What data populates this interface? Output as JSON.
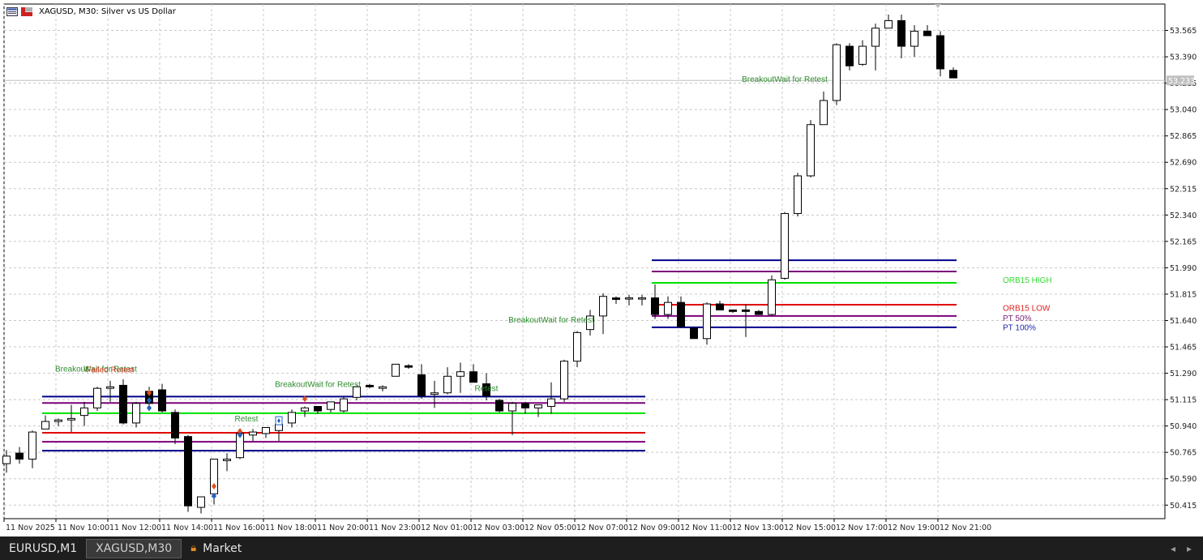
{
  "window": {
    "title": "XAGUSD, M30:  Silver vs US Dollar"
  },
  "chart_data": {
    "type": "candlestick",
    "symbol": "XAGUSD",
    "timeframe": "M30",
    "title": "XAGUSD, M30:  Silver vs US Dollar",
    "ylim": [
      50.325,
      53.74
    ],
    "grid": true,
    "current_price": "53.233",
    "y_ticks": [
      "53.565",
      "53.390",
      "53.215",
      "53.040",
      "52.865",
      "52.690",
      "52.515",
      "52.340",
      "52.165",
      "51.990",
      "51.815",
      "51.640",
      "51.465",
      "51.290",
      "51.115",
      "50.940",
      "50.765",
      "50.590",
      "50.415"
    ],
    "x_ticks": [
      "11 Nov 2025",
      "11 Nov 10:00",
      "11 Nov 12:00",
      "11 Nov 14:00",
      "11 Nov 16:00",
      "11 Nov 18:00",
      "11 Nov 20:00",
      "11 Nov 23:00",
      "12 Nov 01:00",
      "12 Nov 03:00",
      "12 Nov 05:00",
      "12 Nov 07:00",
      "12 Nov 09:00",
      "12 Nov 11:00",
      "12 Nov 13:00",
      "12 Nov 15:00",
      "12 Nov 17:00",
      "12 Nov 19:00",
      "12 Nov 21:00"
    ],
    "candles": [
      {
        "o": 50.69,
        "h": 50.78,
        "l": 50.63,
        "c": 50.74
      },
      {
        "o": 50.76,
        "h": 50.8,
        "l": 50.69,
        "c": 50.72
      },
      {
        "o": 50.72,
        "h": 50.91,
        "l": 50.66,
        "c": 50.9
      },
      {
        "o": 50.92,
        "h": 51.01,
        "l": 50.92,
        "c": 50.97
      },
      {
        "o": 50.97,
        "h": 50.99,
        "l": 50.94,
        "c": 50.98
      },
      {
        "o": 50.98,
        "h": 51.08,
        "l": 50.9,
        "c": 50.99
      },
      {
        "o": 51.01,
        "h": 51.1,
        "l": 50.94,
        "c": 51.06
      },
      {
        "o": 51.06,
        "h": 51.2,
        "l": 51.04,
        "c": 51.19
      },
      {
        "o": 51.19,
        "h": 51.24,
        "l": 51.1,
        "c": 51.2
      },
      {
        "o": 51.21,
        "h": 51.25,
        "l": 50.95,
        "c": 50.96
      },
      {
        "o": 50.96,
        "h": 51.1,
        "l": 50.93,
        "c": 51.09
      },
      {
        "o": 51.17,
        "h": 51.2,
        "l": 51.05,
        "c": 51.09
      },
      {
        "o": 51.18,
        "h": 51.22,
        "l": 51.03,
        "c": 51.04
      },
      {
        "o": 51.03,
        "h": 51.05,
        "l": 50.82,
        "c": 50.86
      },
      {
        "o": 50.87,
        "h": 50.88,
        "l": 50.37,
        "c": 50.41
      },
      {
        "o": 50.4,
        "h": 50.47,
        "l": 50.36,
        "c": 50.47
      },
      {
        "o": 50.49,
        "h": 50.72,
        "l": 50.42,
        "c": 50.72
      },
      {
        "o": 50.71,
        "h": 50.76,
        "l": 50.64,
        "c": 50.72
      },
      {
        "o": 50.73,
        "h": 50.87,
        "l": 50.72,
        "c": 50.89
      },
      {
        "o": 50.88,
        "h": 50.92,
        "l": 50.84,
        "c": 50.9
      },
      {
        "o": 50.89,
        "h": 50.91,
        "l": 50.86,
        "c": 50.93
      },
      {
        "o": 50.91,
        "h": 50.96,
        "l": 50.84,
        "c": 50.95
      },
      {
        "o": 50.96,
        "h": 51.05,
        "l": 50.93,
        "c": 51.03
      },
      {
        "o": 51.04,
        "h": 51.07,
        "l": 51.0,
        "c": 51.06
      },
      {
        "o": 51.07,
        "h": 51.07,
        "l": 51.02,
        "c": 51.04
      },
      {
        "o": 51.05,
        "h": 51.1,
        "l": 51.03,
        "c": 51.1
      },
      {
        "o": 51.04,
        "h": 51.14,
        "l": 51.03,
        "c": 51.12
      },
      {
        "o": 51.13,
        "h": 51.21,
        "l": 51.11,
        "c": 51.2
      },
      {
        "o": 51.21,
        "h": 51.22,
        "l": 51.19,
        "c": 51.2
      },
      {
        "o": 51.19,
        "h": 51.21,
        "l": 51.17,
        "c": 51.2
      },
      {
        "o": 51.27,
        "h": 51.35,
        "l": 51.27,
        "c": 51.35
      },
      {
        "o": 51.34,
        "h": 51.35,
        "l": 51.32,
        "c": 51.33
      },
      {
        "o": 51.28,
        "h": 51.35,
        "l": 51.12,
        "c": 51.14
      },
      {
        "o": 51.15,
        "h": 51.24,
        "l": 51.06,
        "c": 51.16
      },
      {
        "o": 51.16,
        "h": 51.33,
        "l": 51.15,
        "c": 51.27
      },
      {
        "o": 51.27,
        "h": 51.36,
        "l": 51.16,
        "c": 51.3
      },
      {
        "o": 51.3,
        "h": 51.35,
        "l": 51.24,
        "c": 51.23
      },
      {
        "o": 51.22,
        "h": 51.29,
        "l": 51.11,
        "c": 51.14
      },
      {
        "o": 51.11,
        "h": 51.12,
        "l": 51.03,
        "c": 51.04
      },
      {
        "o": 51.04,
        "h": 51.1,
        "l": 50.88,
        "c": 51.09
      },
      {
        "o": 51.09,
        "h": 51.1,
        "l": 51.02,
        "c": 51.06
      },
      {
        "o": 51.06,
        "h": 51.08,
        "l": 51.0,
        "c": 51.08
      },
      {
        "o": 51.07,
        "h": 51.23,
        "l": 51.02,
        "c": 51.12
      },
      {
        "o": 51.12,
        "h": 51.38,
        "l": 51.1,
        "c": 51.37
      },
      {
        "o": 51.37,
        "h": 51.57,
        "l": 51.33,
        "c": 51.56
      },
      {
        "o": 51.58,
        "h": 51.71,
        "l": 51.54,
        "c": 51.67
      },
      {
        "o": 51.67,
        "h": 51.82,
        "l": 51.55,
        "c": 51.8
      },
      {
        "o": 51.79,
        "h": 51.8,
        "l": 51.75,
        "c": 51.78
      },
      {
        "o": 51.79,
        "h": 51.81,
        "l": 51.74,
        "c": 51.79
      },
      {
        "o": 51.79,
        "h": 51.81,
        "l": 51.74,
        "c": 51.79
      },
      {
        "o": 51.79,
        "h": 51.88,
        "l": 51.65,
        "c": 51.68
      },
      {
        "o": 51.68,
        "h": 51.8,
        "l": 51.65,
        "c": 51.76
      },
      {
        "o": 51.76,
        "h": 51.8,
        "l": 51.59,
        "c": 51.6
      },
      {
        "o": 51.59,
        "h": 51.59,
        "l": 51.52,
        "c": 51.52
      },
      {
        "o": 51.52,
        "h": 51.76,
        "l": 51.48,
        "c": 51.75
      },
      {
        "o": 51.75,
        "h": 51.77,
        "l": 51.72,
        "c": 51.71
      },
      {
        "o": 51.71,
        "h": 51.71,
        "l": 51.69,
        "c": 51.7
      },
      {
        "o": 51.71,
        "h": 51.75,
        "l": 51.53,
        "c": 51.7
      },
      {
        "o": 51.7,
        "h": 51.71,
        "l": 51.7,
        "c": 51.68
      },
      {
        "o": 51.68,
        "h": 51.94,
        "l": 51.67,
        "c": 51.91
      },
      {
        "o": 51.92,
        "h": 52.36,
        "l": 51.91,
        "c": 52.35
      },
      {
        "o": 52.35,
        "h": 52.62,
        "l": 52.33,
        "c": 52.6
      },
      {
        "o": 52.6,
        "h": 52.97,
        "l": 52.59,
        "c": 52.94
      },
      {
        "o": 52.94,
        "h": 53.16,
        "l": 52.95,
        "c": 53.1
      },
      {
        "o": 53.1,
        "h": 53.48,
        "l": 53.07,
        "c": 53.47
      },
      {
        "o": 53.46,
        "h": 53.48,
        "l": 53.3,
        "c": 53.33
      },
      {
        "o": 53.34,
        "h": 53.5,
        "l": 53.33,
        "c": 53.46
      },
      {
        "o": 53.46,
        "h": 53.61,
        "l": 53.3,
        "c": 53.58
      },
      {
        "o": 53.58,
        "h": 53.67,
        "l": 53.58,
        "c": 53.63
      },
      {
        "o": 53.63,
        "h": 53.67,
        "l": 53.38,
        "c": 53.46
      },
      {
        "o": 53.46,
        "h": 53.6,
        "l": 53.39,
        "c": 53.56
      },
      {
        "o": 53.56,
        "h": 53.6,
        "l": 53.53,
        "c": 53.53
      },
      {
        "o": 53.53,
        "h": 53.56,
        "l": 53.26,
        "c": 53.31
      },
      {
        "o": 53.3,
        "h": 53.32,
        "l": 53.25,
        "c": 53.25
      }
    ],
    "level_sets": [
      {
        "range": [
          3,
          49
        ],
        "lines": [
          {
            "name": "PT 100% upper",
            "value": 51.135,
            "color": "#00008b"
          },
          {
            "name": "PT 50% upper",
            "value": 51.093,
            "color": "#7b007b"
          },
          {
            "name": "ORB15 HIGH",
            "value": 51.025,
            "color": "#00e000"
          },
          {
            "name": "ORB15 LOW",
            "value": 50.895,
            "color": "#e00000"
          },
          {
            "name": "PT 50% lower",
            "value": 50.835,
            "color": "#7b007b"
          },
          {
            "name": "PT 100% lower",
            "value": 50.776,
            "color": "#00008b"
          }
        ]
      },
      {
        "range": [
          50,
          73
        ],
        "lines": [
          {
            "name": "PT 100% upper",
            "value": 52.04,
            "color": "#00008b"
          },
          {
            "name": "PT 50% upper",
            "value": 51.965,
            "color": "#7b007b"
          },
          {
            "name": "ORB15 HIGH",
            "value": 51.89,
            "color": "#00e000"
          },
          {
            "name": "ORB15 LOW",
            "value": 51.745,
            "color": "#e00000"
          },
          {
            "name": "PT 50% lower",
            "value": 51.67,
            "color": "#7b007b"
          },
          {
            "name": "PT 100% lower",
            "value": 51.595,
            "color": "#00008b"
          }
        ]
      }
    ],
    "legend": [
      {
        "label": "ORB15 HIGH",
        "color": "#33dd33",
        "value": 51.908
      },
      {
        "label": "ORB15 LOW",
        "color": "#dd2222",
        "value": 51.724
      },
      {
        "label": "PT 50%",
        "color": "#7b1f7b",
        "value": 51.657
      },
      {
        "label": "PT 100%",
        "color": "#1f1fa8",
        "value": 51.594
      }
    ],
    "annotations": [
      {
        "text": "Breakout",
        "idx": 5,
        "value": 51.3,
        "color": "#2e8b2e"
      },
      {
        "text": "Wait for Retest",
        "idx": 8,
        "value": 51.3,
        "color": "#2e8b2e"
      },
      {
        "text": "Failed Retest",
        "idx": 8,
        "value": 51.295,
        "color": "#dd3322"
      },
      {
        "text": "BreakoutWait for Retest",
        "idx": 24,
        "value": 51.2,
        "color": "#2e8b2e"
      },
      {
        "text": "Retest",
        "idx": 18.5,
        "value": 50.97,
        "color": "#2e8b2e"
      },
      {
        "text": "Retest",
        "idx": 37,
        "value": 51.173,
        "color": "#2e8b2e"
      },
      {
        "text": "BreakoutWait for Retest",
        "idx": 42,
        "value": 51.627,
        "color": "#2e8b2e"
      },
      {
        "text": "BreakoutWait for Retest",
        "idx": 60,
        "value": 53.225,
        "color": "#2e8b2e"
      }
    ],
    "markers": [
      {
        "idx": 11,
        "value": 51.16,
        "type": "red"
      },
      {
        "idx": 11,
        "value": 51.11,
        "type": "blue"
      },
      {
        "idx": 11,
        "value": 51.06,
        "type": "blue"
      },
      {
        "idx": 16,
        "value": 50.54,
        "type": "red"
      },
      {
        "idx": 16,
        "value": 50.475,
        "type": "blue"
      },
      {
        "idx": 18,
        "value": 50.905,
        "type": "red"
      },
      {
        "idx": 18,
        "value": 50.88,
        "type": "blue"
      },
      {
        "idx": 21,
        "value": 50.975,
        "type": "boxblue"
      },
      {
        "idx": 23,
        "value": 51.12,
        "type": "red"
      }
    ]
  },
  "tabs": [
    {
      "label": "EURUSD,M1",
      "active": false,
      "icon": ""
    },
    {
      "label": "XAGUSD,M30",
      "active": true,
      "icon": ""
    },
    {
      "label": "Market",
      "active": false,
      "icon": "lock-icon"
    }
  ],
  "nav_arrows": [
    "◂",
    "▸"
  ]
}
